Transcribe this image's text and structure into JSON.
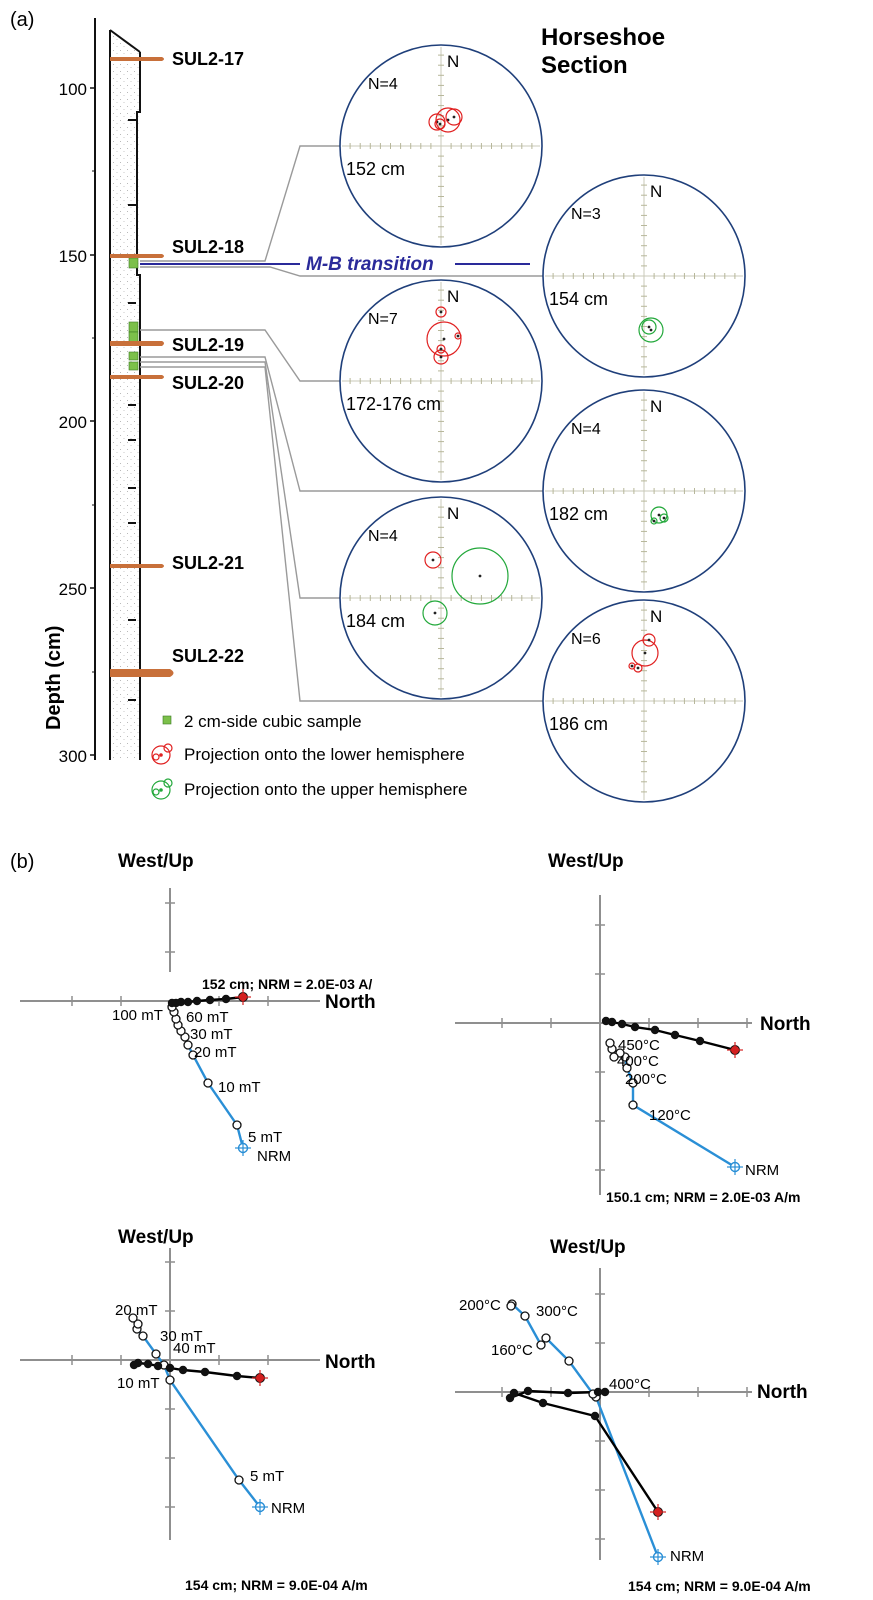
{
  "panel_a": {
    "label": "(a)",
    "section_title_line1": "Horseshoe",
    "section_title_line2": "Section",
    "depth_axis": {
      "title": "Depth (cm)",
      "ticks": [
        "100",
        "150",
        "200",
        "250",
        "300"
      ]
    },
    "layers": [
      "SUL2-17",
      "SUL2-18",
      "SUL2-19",
      "SUL2-20",
      "SUL2-21",
      "SUL2-22"
    ],
    "transition_label": "M-B transition",
    "north_label": "N",
    "stereonets": [
      {
        "n_label": "N=4",
        "depth_label": "152 cm",
        "hemisphere": "lower"
      },
      {
        "n_label": "N=3",
        "depth_label": "154 cm",
        "hemisphere": "upper"
      },
      {
        "n_label": "N=7",
        "depth_label": "172-176 cm",
        "hemisphere": "lower"
      },
      {
        "n_label": "N=4",
        "depth_label": "182 cm",
        "hemisphere": "upper"
      },
      {
        "n_label": "N=4",
        "depth_label": "184 cm",
        "hemisphere": "mixed"
      },
      {
        "n_label": "N=6",
        "depth_label": "186 cm",
        "hemisphere": "lower"
      }
    ],
    "legend": {
      "cube": "2 cm-side cubic sample",
      "lower": "Projection onto the lower hemisphere",
      "upper": "Projection onto the upper hemisphere"
    },
    "colors": {
      "lower": "#e02020",
      "upper": "#22a83a",
      "net": "#1f3f7a",
      "transition": "#2a2a9a",
      "layer": "#c8703a",
      "cube": "#7cc04a"
    }
  },
  "panel_b": {
    "label": "(b)",
    "vertical_axis_label": "West/Up",
    "horizontal_axis_label": "North",
    "colors": {
      "horizontal": "#000000",
      "vertical": "#2a8fd6",
      "nrm_marker": "#d42020"
    },
    "plots": [
      {
        "caption": "152 cm; NRM = 2.0E-03 A/",
        "step_labels": [
          "100 mT",
          "60 mT",
          "30 mT",
          "20 mT",
          "10 mT",
          "5 mT",
          "NRM"
        ]
      },
      {
        "caption": "150.1 cm; NRM = 2.0E-03 A/m",
        "step_labels": [
          "450°C",
          "400°C",
          "200°C",
          "120°C",
          "NRM"
        ]
      },
      {
        "caption": "154 cm; NRM = 9.0E-04 A/m",
        "step_labels": [
          "20 mT",
          "30 mT",
          "40 mT",
          "10 mT",
          "5 mT",
          "NRM"
        ]
      },
      {
        "caption": "154 cm; NRM = 9.0E-04 A/m",
        "step_labels": [
          "200°C",
          "300°C",
          "160°C",
          "400°C",
          "NRM"
        ]
      }
    ]
  }
}
